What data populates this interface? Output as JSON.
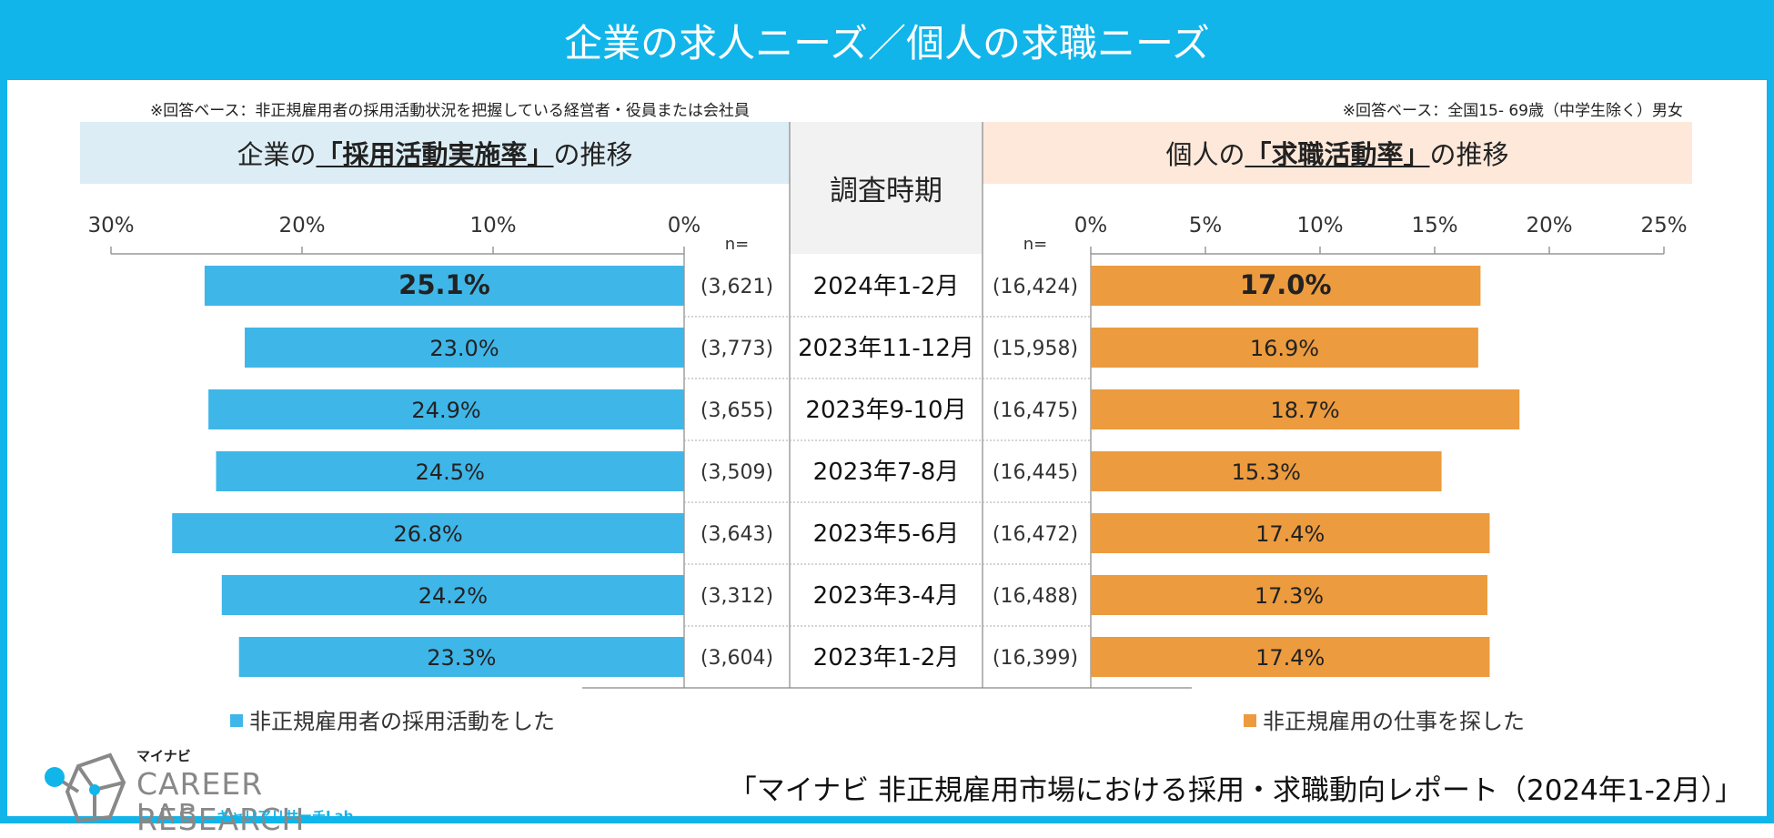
{
  "title": "企業の求人ニーズ／個人の求職ニーズ",
  "left_note": "※回答ベース：非正規雇用者の採用活動状況を把握している経営者・役員または会社員",
  "right_note": "※回答ベース：全国15- 69歳（中学生除く）男女",
  "left_panel": {
    "prefix": "企業の",
    "emph": "「採用活動実施率」",
    "suffix": "の推移"
  },
  "right_panel": {
    "prefix": "個人の",
    "emph": "「求職活動率」",
    "suffix": "の推移"
  },
  "period_header": "調査時期",
  "footer_title": "「マイナビ 非正規雇用市場における採用・求職動向レポート（2024年1-2月）」",
  "logo": {
    "mynavi": "マイナビ",
    "line1": "CAREER RESEARCH",
    "line2": "LAB",
    "sub": "キャリアリサーチLab"
  },
  "colors": {
    "header": "#11b5ea",
    "left_bar": "#3fb6e8",
    "right_bar": "#ec9b3e"
  },
  "chart_data": {
    "type": "bar",
    "orientation": "horizontal-butterfly",
    "n_label": "n=",
    "categories": [
      "2024年1-2月",
      "2023年11-12月",
      "2023年9-10月",
      "2023年7-8月",
      "2023年5-6月",
      "2023年3-4月",
      "2023年1-2月"
    ],
    "left": {
      "name": "非正規雇用者の採用活動をした",
      "values": [
        25.1,
        23.0,
        24.9,
        24.5,
        26.8,
        24.2,
        23.3
      ],
      "n": [
        "(3,621)",
        "(3,773)",
        "(3,655)",
        "(3,509)",
        "(3,643)",
        "(3,312)",
        "(3,604)"
      ],
      "axis_max": 30,
      "ticks": [
        30,
        20,
        10,
        0
      ],
      "tick_labels": [
        "30%",
        "20%",
        "10%",
        "0%"
      ]
    },
    "right": {
      "name": "非正規雇用の仕事を探した",
      "values": [
        17.0,
        16.9,
        18.7,
        15.3,
        17.4,
        17.3,
        17.4
      ],
      "n": [
        "(16,424)",
        "(15,958)",
        "(16,475)",
        "(16,445)",
        "(16,472)",
        "(16,488)",
        "(16,399)"
      ],
      "axis_max": 25,
      "ticks": [
        0,
        5,
        10,
        15,
        20,
        25
      ],
      "tick_labels": [
        "0%",
        "5%",
        "10%",
        "15%",
        "20%",
        "25%"
      ]
    },
    "highlight_first": true
  }
}
